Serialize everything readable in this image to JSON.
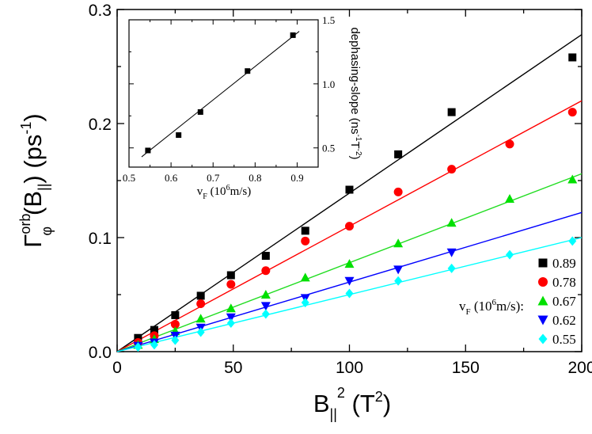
{
  "chart_data": [
    {
      "type": "scatter",
      "role": "main",
      "xlabel": "B‖² (T²)",
      "ylabel": "Γφorb(B‖) (ps⁻¹)",
      "xlim": [
        0,
        200
      ],
      "ylim": [
        0,
        0.3
      ],
      "xticks": [
        "0",
        "50",
        "100",
        "150",
        "200"
      ],
      "yticks": [
        "0.0",
        "0.1",
        "0.2",
        "0.3"
      ],
      "legend_title": "vF (10⁶m/s):",
      "legend_position": "bottom-right",
      "fit_lines": "linear through origin for each series",
      "x": [
        9,
        16,
        25,
        36,
        49,
        64,
        81,
        100,
        121,
        144,
        169,
        196
      ],
      "series": [
        {
          "name": "0.89",
          "marker": "square",
          "color": "#000000",
          "slope": 0.00139,
          "x": [
            9,
            16,
            25,
            36,
            49,
            64,
            81,
            100,
            121,
            144,
            196
          ],
          "values": [
            0.012,
            0.019,
            0.032,
            0.049,
            0.067,
            0.084,
            0.106,
            0.142,
            0.173,
            0.21,
            0.258
          ]
        },
        {
          "name": "0.78",
          "marker": "circle",
          "color": "#ff0000",
          "slope": 0.0011,
          "x": [
            9,
            16,
            25,
            36,
            49,
            64,
            81,
            100,
            121,
            144,
            169,
            196
          ],
          "values": [
            0.008,
            0.014,
            0.024,
            0.042,
            0.059,
            0.071,
            0.097,
            0.11,
            0.14,
            0.16,
            0.182,
            0.21
          ]
        },
        {
          "name": "0.67",
          "marker": "triangle-up",
          "color": "#00e000",
          "slope": 0.00078,
          "x": [
            9,
            16,
            25,
            36,
            49,
            64,
            81,
            100,
            121,
            144,
            169,
            196
          ],
          "values": [
            0.006,
            0.011,
            0.018,
            0.029,
            0.038,
            0.05,
            0.065,
            0.077,
            0.095,
            0.113,
            0.134,
            0.151
          ]
        },
        {
          "name": "0.62",
          "marker": "triangle-down",
          "color": "#0000ff",
          "slope": 0.00061,
          "x": [
            9,
            16,
            25,
            36,
            49,
            64,
            81,
            100,
            121,
            144
          ],
          "values": [
            0.005,
            0.008,
            0.014,
            0.021,
            0.03,
            0.04,
            0.047,
            0.062,
            0.072,
            0.087
          ]
        },
        {
          "name": "0.55",
          "marker": "diamond",
          "color": "#00ffff",
          "slope": 0.0005,
          "x": [
            9,
            16,
            25,
            36,
            49,
            64,
            81,
            100,
            121,
            144,
            169,
            196
          ],
          "values": [
            0.004,
            0.006,
            0.01,
            0.017,
            0.025,
            0.033,
            0.043,
            0.051,
            0.062,
            0.073,
            0.085,
            0.097
          ]
        }
      ]
    },
    {
      "type": "scatter",
      "role": "inset",
      "xlabel": "vF (10⁶m/s)",
      "ylabel": "dephasing-slope (ns⁻¹T⁻²)",
      "xlim": [
        0.5,
        0.95
      ],
      "ylim": [
        0.35,
        1.5
      ],
      "xticks": [
        "0.5",
        "0.6",
        "0.7",
        "0.8",
        "0.9"
      ],
      "yticks": [
        "0.5",
        "1.0",
        "1.5"
      ],
      "fit": {
        "x": [
          0.53,
          0.905
        ],
        "y": [
          0.43,
          1.41
        ]
      },
      "x": [
        0.545,
        0.618,
        0.67,
        0.782,
        0.89
      ],
      "values": [
        0.48,
        0.6,
        0.78,
        1.1,
        1.38
      ]
    }
  ]
}
